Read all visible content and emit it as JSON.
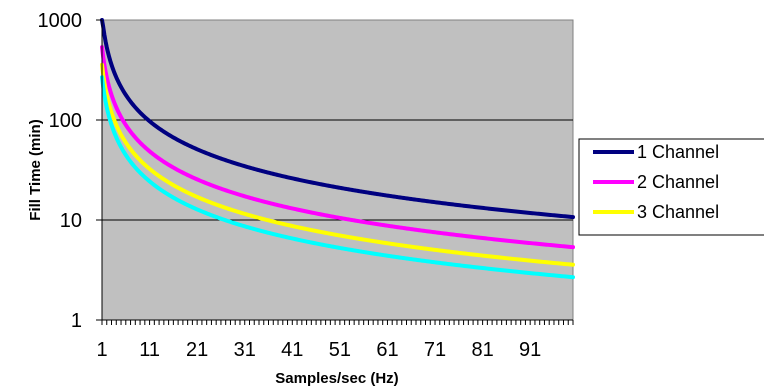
{
  "chart_data": {
    "type": "line",
    "title": "",
    "xlabel": "Samples/sec (Hz)",
    "ylabel": "Fill Time (min)",
    "y_scale": "log",
    "ylim": [
      1,
      1000
    ],
    "y_ticks": [
      "1",
      "10",
      "100",
      "1000"
    ],
    "xlim": [
      1,
      100
    ],
    "x_ticks": [
      "1",
      "11",
      "21",
      "31",
      "41",
      "51",
      "61",
      "71",
      "81",
      "91"
    ],
    "plot_background": "#C0C0C0",
    "gridlines": "horizontal",
    "legend_position": "right",
    "series": [
      {
        "name": "1 Channel",
        "color": "#000080",
        "k": 1070
      },
      {
        "name": "2 Channel",
        "color": "#FF00FF",
        "k": 535
      },
      {
        "name": "3 Channel",
        "color": "#FFFF00",
        "k": 357
      },
      {
        "name": "",
        "color": "#00FFFF",
        "k": 268
      }
    ]
  }
}
